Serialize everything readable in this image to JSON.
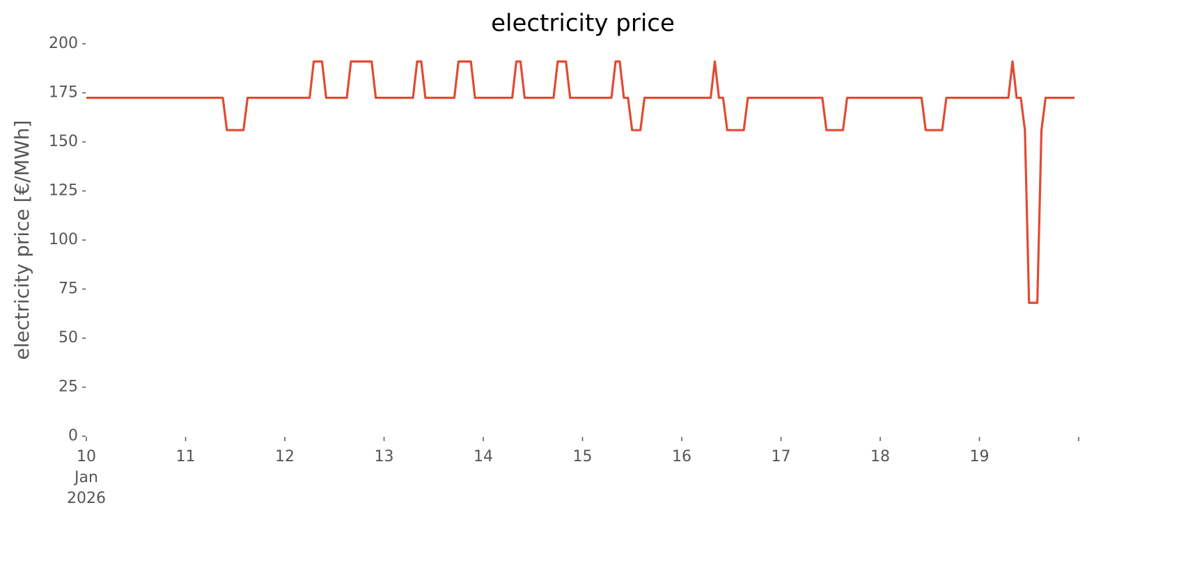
{
  "chart_data": {
    "type": "line",
    "title": "electricity price",
    "ylabel": "electricity price [€/MWh]",
    "color": "#e24a33",
    "ylim": [
      0,
      200
    ],
    "yticks": [
      0,
      25,
      50,
      75,
      100,
      125,
      150,
      175,
      200
    ],
    "xlim": [
      "2026-01-10 00:00",
      "2026-01-20 00:00"
    ],
    "xticks": [
      {
        "value": "2026-01-10 00:00",
        "label": "10\nJan\n2026"
      },
      {
        "value": "2026-01-11 00:00",
        "label": "11"
      },
      {
        "value": "2026-01-12 00:00",
        "label": "12"
      },
      {
        "value": "2026-01-13 00:00",
        "label": "13"
      },
      {
        "value": "2026-01-14 00:00",
        "label": "14"
      },
      {
        "value": "2026-01-15 00:00",
        "label": "15"
      },
      {
        "value": "2026-01-16 00:00",
        "label": "16"
      },
      {
        "value": "2026-01-17 00:00",
        "label": "17"
      },
      {
        "value": "2026-01-18 00:00",
        "label": "18"
      },
      {
        "value": "2026-01-19 00:00",
        "label": "19"
      },
      {
        "value": "2026-01-20 00:00",
        "label": null
      }
    ],
    "grid": false,
    "x": [
      "2026-01-10 00:00",
      "2026-01-10 01:00",
      "2026-01-10 02:00",
      "2026-01-10 03:00",
      "2026-01-10 04:00",
      "2026-01-10 05:00",
      "2026-01-10 06:00",
      "2026-01-10 07:00",
      "2026-01-10 08:00",
      "2026-01-10 09:00",
      "2026-01-10 10:00",
      "2026-01-10 11:00",
      "2026-01-10 12:00",
      "2026-01-10 13:00",
      "2026-01-10 14:00",
      "2026-01-10 15:00",
      "2026-01-10 16:00",
      "2026-01-10 17:00",
      "2026-01-10 18:00",
      "2026-01-10 19:00",
      "2026-01-10 20:00",
      "2026-01-10 21:00",
      "2026-01-10 22:00",
      "2026-01-10 23:00",
      "2026-01-11 00:00",
      "2026-01-11 01:00",
      "2026-01-11 02:00",
      "2026-01-11 03:00",
      "2026-01-11 04:00",
      "2026-01-11 05:00",
      "2026-01-11 06:00",
      "2026-01-11 07:00",
      "2026-01-11 08:00",
      "2026-01-11 09:00",
      "2026-01-11 10:00",
      "2026-01-11 11:00",
      "2026-01-11 12:00",
      "2026-01-11 13:00",
      "2026-01-11 14:00",
      "2026-01-11 15:00",
      "2026-01-11 16:00",
      "2026-01-11 17:00",
      "2026-01-11 18:00",
      "2026-01-11 19:00",
      "2026-01-11 20:00",
      "2026-01-11 21:00",
      "2026-01-11 22:00",
      "2026-01-11 23:00",
      "2026-01-12 00:00",
      "2026-01-12 01:00",
      "2026-01-12 02:00",
      "2026-01-12 03:00",
      "2026-01-12 04:00",
      "2026-01-12 05:00",
      "2026-01-12 06:00",
      "2026-01-12 07:00",
      "2026-01-12 08:00",
      "2026-01-12 09:00",
      "2026-01-12 10:00",
      "2026-01-12 11:00",
      "2026-01-12 12:00",
      "2026-01-12 13:00",
      "2026-01-12 14:00",
      "2026-01-12 15:00",
      "2026-01-12 16:00",
      "2026-01-12 17:00",
      "2026-01-12 18:00",
      "2026-01-12 19:00",
      "2026-01-12 20:00",
      "2026-01-12 21:00",
      "2026-01-12 22:00",
      "2026-01-12 23:00",
      "2026-01-13 00:00",
      "2026-01-13 01:00",
      "2026-01-13 02:00",
      "2026-01-13 03:00",
      "2026-01-13 04:00",
      "2026-01-13 05:00",
      "2026-01-13 06:00",
      "2026-01-13 07:00",
      "2026-01-13 08:00",
      "2026-01-13 09:00",
      "2026-01-13 10:00",
      "2026-01-13 11:00",
      "2026-01-13 12:00",
      "2026-01-13 13:00",
      "2026-01-13 14:00",
      "2026-01-13 15:00",
      "2026-01-13 16:00",
      "2026-01-13 17:00",
      "2026-01-13 18:00",
      "2026-01-13 19:00",
      "2026-01-13 20:00",
      "2026-01-13 21:00",
      "2026-01-13 22:00",
      "2026-01-13 23:00",
      "2026-01-14 00:00",
      "2026-01-14 01:00",
      "2026-01-14 02:00",
      "2026-01-14 03:00",
      "2026-01-14 04:00",
      "2026-01-14 05:00",
      "2026-01-14 06:00",
      "2026-01-14 07:00",
      "2026-01-14 08:00",
      "2026-01-14 09:00",
      "2026-01-14 10:00",
      "2026-01-14 11:00",
      "2026-01-14 12:00",
      "2026-01-14 13:00",
      "2026-01-14 14:00",
      "2026-01-14 15:00",
      "2026-01-14 16:00",
      "2026-01-14 17:00",
      "2026-01-14 18:00",
      "2026-01-14 19:00",
      "2026-01-14 20:00",
      "2026-01-14 21:00",
      "2026-01-14 22:00",
      "2026-01-14 23:00",
      "2026-01-15 00:00",
      "2026-01-15 01:00",
      "2026-01-15 02:00",
      "2026-01-15 03:00",
      "2026-01-15 04:00",
      "2026-01-15 05:00",
      "2026-01-15 06:00",
      "2026-01-15 07:00",
      "2026-01-15 08:00",
      "2026-01-15 09:00",
      "2026-01-15 10:00",
      "2026-01-15 11:00",
      "2026-01-15 12:00",
      "2026-01-15 13:00",
      "2026-01-15 14:00",
      "2026-01-15 15:00",
      "2026-01-15 16:00",
      "2026-01-15 17:00",
      "2026-01-15 18:00",
      "2026-01-15 19:00",
      "2026-01-15 20:00",
      "2026-01-15 21:00",
      "2026-01-15 22:00",
      "2026-01-15 23:00",
      "2026-01-16 00:00",
      "2026-01-16 01:00",
      "2026-01-16 02:00",
      "2026-01-16 03:00",
      "2026-01-16 04:00",
      "2026-01-16 05:00",
      "2026-01-16 06:00",
      "2026-01-16 07:00",
      "2026-01-16 08:00",
      "2026-01-16 09:00",
      "2026-01-16 10:00",
      "2026-01-16 11:00",
      "2026-01-16 12:00",
      "2026-01-16 13:00",
      "2026-01-16 14:00",
      "2026-01-16 15:00",
      "2026-01-16 16:00",
      "2026-01-16 17:00",
      "2026-01-16 18:00",
      "2026-01-16 19:00",
      "2026-01-16 20:00",
      "2026-01-16 21:00",
      "2026-01-16 22:00",
      "2026-01-16 23:00",
      "2026-01-17 00:00",
      "2026-01-17 01:00",
      "2026-01-17 02:00",
      "2026-01-17 03:00",
      "2026-01-17 04:00",
      "2026-01-17 05:00",
      "2026-01-17 06:00",
      "2026-01-17 07:00",
      "2026-01-17 08:00",
      "2026-01-17 09:00",
      "2026-01-17 10:00",
      "2026-01-17 11:00",
      "2026-01-17 12:00",
      "2026-01-17 13:00",
      "2026-01-17 14:00",
      "2026-01-17 15:00",
      "2026-01-17 16:00",
      "2026-01-17 17:00",
      "2026-01-17 18:00",
      "2026-01-17 19:00",
      "2026-01-17 20:00",
      "2026-01-17 21:00",
      "2026-01-17 22:00",
      "2026-01-17 23:00",
      "2026-01-18 00:00",
      "2026-01-18 01:00",
      "2026-01-18 02:00",
      "2026-01-18 03:00",
      "2026-01-18 04:00",
      "2026-01-18 05:00",
      "2026-01-18 06:00",
      "2026-01-18 07:00",
      "2026-01-18 08:00",
      "2026-01-18 09:00",
      "2026-01-18 10:00",
      "2026-01-18 11:00",
      "2026-01-18 12:00",
      "2026-01-18 13:00",
      "2026-01-18 14:00",
      "2026-01-18 15:00",
      "2026-01-18 16:00",
      "2026-01-18 17:00",
      "2026-01-18 18:00",
      "2026-01-18 19:00",
      "2026-01-18 20:00",
      "2026-01-18 21:00",
      "2026-01-18 22:00",
      "2026-01-18 23:00",
      "2026-01-19 00:00",
      "2026-01-19 01:00",
      "2026-01-19 02:00",
      "2026-01-19 03:00",
      "2026-01-19 04:00",
      "2026-01-19 05:00",
      "2026-01-19 06:00",
      "2026-01-19 07:00",
      "2026-01-19 08:00",
      "2026-01-19 09:00",
      "2026-01-19 10:00",
      "2026-01-19 11:00",
      "2026-01-19 12:00",
      "2026-01-19 13:00",
      "2026-01-19 14:00",
      "2026-01-19 15:00",
      "2026-01-19 16:00",
      "2026-01-19 17:00",
      "2026-01-19 18:00",
      "2026-01-19 19:00",
      "2026-01-19 20:00",
      "2026-01-19 21:00",
      "2026-01-19 22:00",
      "2026-01-19 23:00"
    ],
    "values": [
      172.5,
      172.5,
      172.5,
      172.5,
      172.5,
      172.5,
      172.5,
      172.5,
      172.5,
      172.5,
      172.5,
      172.5,
      172.5,
      172.5,
      172.5,
      172.5,
      172.5,
      172.5,
      172.5,
      172.5,
      172.5,
      172.5,
      172.5,
      172.5,
      172.5,
      172.5,
      172.5,
      172.5,
      172.5,
      172.5,
      172.5,
      172.5,
      172.5,
      172.5,
      156,
      156,
      156,
      156,
      156,
      172.5,
      172.5,
      172.5,
      172.5,
      172.5,
      172.5,
      172.5,
      172.5,
      172.5,
      172.5,
      172.5,
      172.5,
      172.5,
      172.5,
      172.5,
      172.5,
      191,
      191,
      191,
      172.5,
      172.5,
      172.5,
      172.5,
      172.5,
      172.5,
      191,
      191,
      191,
      191,
      191,
      191,
      172.5,
      172.5,
      172.5,
      172.5,
      172.5,
      172.5,
      172.5,
      172.5,
      172.5,
      172.5,
      191,
      191,
      172.5,
      172.5,
      172.5,
      172.5,
      172.5,
      172.5,
      172.5,
      172.5,
      191,
      191,
      191,
      191,
      172.5,
      172.5,
      172.5,
      172.5,
      172.5,
      172.5,
      172.5,
      172.5,
      172.5,
      172.5,
      191,
      191,
      172.5,
      172.5,
      172.5,
      172.5,
      172.5,
      172.5,
      172.5,
      172.5,
      191,
      191,
      191,
      172.5,
      172.5,
      172.5,
      172.5,
      172.5,
      172.5,
      172.5,
      172.5,
      172.5,
      172.5,
      172.5,
      191,
      191,
      172.5,
      172.5,
      156,
      156,
      156,
      172.5,
      172.5,
      172.5,
      172.5,
      172.5,
      172.5,
      172.5,
      172.5,
      172.5,
      172.5,
      172.5,
      172.5,
      172.5,
      172.5,
      172.5,
      172.5,
      172.5,
      191,
      172.5,
      172.5,
      156,
      156,
      156,
      156,
      156,
      172.5,
      172.5,
      172.5,
      172.5,
      172.5,
      172.5,
      172.5,
      172.5,
      172.5,
      172.5,
      172.5,
      172.5,
      172.5,
      172.5,
      172.5,
      172.5,
      172.5,
      172.5,
      172.5,
      156,
      156,
      156,
      156,
      156,
      172.5,
      172.5,
      172.5,
      172.5,
      172.5,
      172.5,
      172.5,
      172.5,
      172.5,
      172.5,
      172.5,
      172.5,
      172.5,
      172.5,
      172.5,
      172.5,
      172.5,
      172.5,
      172.5,
      156,
      156,
      156,
      156,
      156,
      172.5,
      172.5,
      172.5,
      172.5,
      172.5,
      172.5,
      172.5,
      172.5,
      172.5,
      172.5,
      172.5,
      172.5,
      172.5,
      172.5,
      172.5,
      172.5,
      191,
      172.5,
      172.5,
      156,
      68,
      68,
      68,
      156,
      172.5,
      172.5,
      172.5,
      172.5,
      172.5,
      172.5,
      172.5,
      172.5
    ]
  }
}
